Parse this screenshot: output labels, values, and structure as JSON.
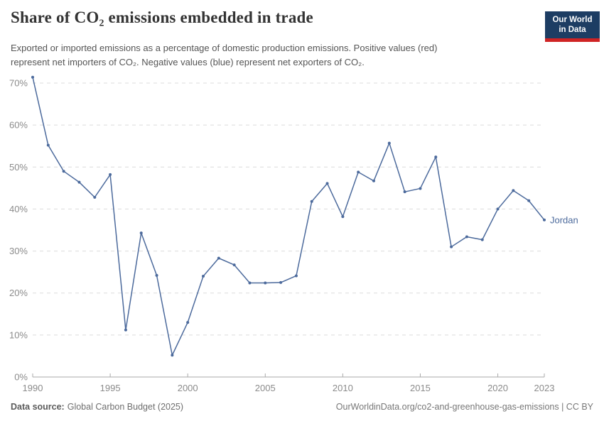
{
  "header": {
    "title": "Share of CO₂ emissions embedded in trade",
    "subtitle_lines": [
      "Exported or imported emissions as a percentage of domestic production emissions. Positive values (red)",
      "represent net importers of CO₂. Negative values (blue) represent net exporters of CO₂."
    ],
    "logo": {
      "line1": "Our World",
      "line2": "in Data",
      "bg_color": "#1d3d63",
      "bar_color": "#cf2324"
    }
  },
  "chart_data": {
    "type": "line",
    "title": "Share of CO₂ emissions embedded in trade",
    "xlabel": "",
    "ylabel": "",
    "unit": "%",
    "xlim": [
      1990,
      2023
    ],
    "ylim": [
      0,
      72
    ],
    "grid": "horizontal-dashed",
    "legend_position": "end-of-line-label",
    "xticks": [
      1990,
      1995,
      2000,
      2005,
      2010,
      2015,
      2020,
      2023
    ],
    "yticks": [
      0,
      10,
      20,
      30,
      40,
      50,
      60,
      70
    ],
    "ytick_suffix": "%",
    "entity_label": "Jordan",
    "series": [
      {
        "name": "Jordan",
        "color": "#4c6a9c",
        "x": [
          1990,
          1991,
          1992,
          1993,
          1994,
          1995,
          1996,
          1997,
          1998,
          1999,
          2000,
          2001,
          2002,
          2003,
          2004,
          2005,
          2006,
          2007,
          2008,
          2009,
          2010,
          2011,
          2012,
          2013,
          2014,
          2015,
          2016,
          2017,
          2018,
          2019,
          2020,
          2021,
          2022,
          2023
        ],
        "values": [
          71.4,
          55.2,
          49.0,
          46.4,
          42.8,
          48.2,
          11.2,
          34.3,
          24.2,
          5.2,
          13.0,
          24.0,
          28.3,
          26.7,
          22.4,
          22.4,
          22.5,
          24.1,
          41.8,
          46.1,
          38.2,
          48.8,
          46.7,
          55.7,
          44.1,
          44.9,
          52.4,
          31.0,
          33.4,
          32.7,
          40.0,
          44.4,
          42.0,
          37.4
        ]
      }
    ]
  },
  "footer": {
    "datasource_label": "Data source:",
    "datasource_value": "Global Carbon Budget (2025)",
    "link": "OurWorldinData.org/co2-and-greenhouse-gas-emissions | CC BY"
  }
}
